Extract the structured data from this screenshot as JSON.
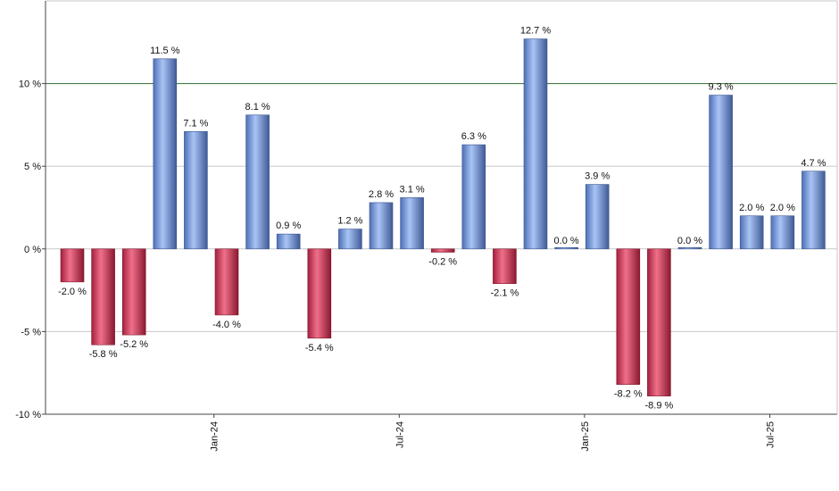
{
  "chart_data": {
    "type": "bar",
    "title": "",
    "xlabel": "",
    "ylabel": "",
    "ylim": [
      -10,
      15
    ],
    "y_ticks": [
      -10,
      -5,
      0,
      5,
      10
    ],
    "y_tick_labels": [
      "-10 %",
      "-5 %",
      "0 %",
      "5 %",
      "10 %"
    ],
    "x_ticks": [
      {
        "index": 5,
        "label": "Jan-24"
      },
      {
        "index": 11,
        "label": "Jul-24"
      },
      {
        "index": 17,
        "label": "Jan-25"
      },
      {
        "index": 23,
        "label": "Jul-25"
      }
    ],
    "reference_line": {
      "value": 10,
      "color": "#2e6b2e"
    },
    "grid": true,
    "legend": "none",
    "colors": {
      "positive": "#7f9fe0",
      "negative": "#d8405c"
    },
    "values": [
      -2.0,
      -5.8,
      -5.2,
      11.5,
      7.1,
      -4.0,
      8.1,
      0.9,
      -5.4,
      1.2,
      2.8,
      3.1,
      -0.2,
      6.3,
      -2.1,
      12.7,
      0.0,
      3.9,
      -8.2,
      -8.9,
      0.0,
      9.3,
      2.0,
      2.0,
      4.7
    ],
    "labels": [
      "-2.0 %",
      "-5.8 %",
      "-5.2 %",
      "11.5 %",
      "7.1 %",
      "-4.0 %",
      "8.1 %",
      "0.9 %",
      "-5.4 %",
      "1.2 %",
      "2.8 %",
      "3.1 %",
      "-0.2 %",
      "6.3 %",
      "-2.1 %",
      "12.7 %",
      "0.0 %",
      "3.9 %",
      "-8.2 %",
      "-8.9 %",
      "0.0 %",
      "9.3 %",
      "2.0 %",
      "2.0 %",
      "4.7 %"
    ]
  }
}
